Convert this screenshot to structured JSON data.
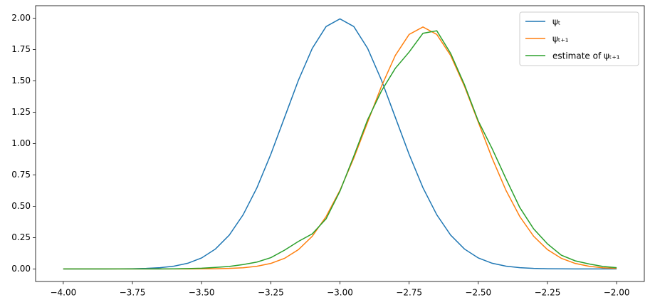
{
  "chart_data": {
    "type": "line",
    "x": [
      -4,
      -3.95,
      -3.9,
      -3.85,
      -3.8,
      -3.75,
      -3.7,
      -3.65,
      -3.6,
      -3.55,
      -3.5,
      -3.45,
      -3.4,
      -3.35,
      -3.3,
      -3.25,
      -3.2,
      -3.15,
      -3.1,
      -3.05,
      -3,
      -2.95,
      -2.9,
      -2.85,
      -2.8,
      -2.75,
      -2.7,
      -2.65,
      -2.6,
      -2.55,
      -2.5,
      -2.45,
      -2.4,
      -2.35,
      -2.3,
      -2.25,
      -2.2,
      -2.15,
      -2.1,
      -2.05,
      -2
    ],
    "series": [
      {
        "name": "ψₜ",
        "color": "#1f77b4",
        "values": [
          0,
          0,
          0.0001,
          0.0002,
          0.0007,
          0.0018,
          0.0044,
          0.0101,
          0.0222,
          0.0455,
          0.0876,
          0.1589,
          0.27,
          0.432,
          0.648,
          0.914,
          1.21,
          1.506,
          1.76,
          1.934,
          1.995,
          1.934,
          1.76,
          1.506,
          1.21,
          0.914,
          0.648,
          0.432,
          0.27,
          0.1589,
          0.0876,
          0.0455,
          0.0222,
          0.0101,
          0.0044,
          0.0018,
          0.0007,
          0.0002,
          0.0001,
          0,
          0
        ]
      },
      {
        "name": "ψₜ₊₁",
        "color": "#ff7f0e",
        "values": [
          0,
          0,
          0,
          0,
          0,
          0,
          0,
          0,
          0,
          0,
          0.0006,
          0.0017,
          0.0042,
          0.0098,
          0.0214,
          0.044,
          0.085,
          0.154,
          0.261,
          0.418,
          0.627,
          0.884,
          1.171,
          1.457,
          1.703,
          1.871,
          1.93,
          1.871,
          1.703,
          1.457,
          1.171,
          0.884,
          0.627,
          0.418,
          0.261,
          0.154,
          0.085,
          0.044,
          0.0214,
          0.0098,
          0.0042
        ]
      },
      {
        "name": "estimate of ψₜ₊₁",
        "color": "#2ca02c",
        "values": [
          0,
          0,
          0,
          0,
          0,
          0,
          0,
          0,
          0.001,
          0.003,
          0.006,
          0.012,
          0.02,
          0.035,
          0.055,
          0.09,
          0.15,
          0.22,
          0.28,
          0.4,
          0.62,
          0.9,
          1.19,
          1.42,
          1.6,
          1.73,
          1.88,
          1.9,
          1.72,
          1.47,
          1.18,
          0.96,
          0.72,
          0.49,
          0.32,
          0.2,
          0.11,
          0.065,
          0.04,
          0.02,
          0.01
        ]
      }
    ],
    "xlim": [
      -4.1,
      -1.9
    ],
    "ylim": [
      -0.1,
      2.1
    ],
    "xticks": [
      {
        "value": -4,
        "label": "−4.00"
      },
      {
        "value": -3.75,
        "label": "−3.75"
      },
      {
        "value": -3.5,
        "label": "−3.50"
      },
      {
        "value": -3.25,
        "label": "−3.25"
      },
      {
        "value": -3,
        "label": "−3.00"
      },
      {
        "value": -2.75,
        "label": "−2.75"
      },
      {
        "value": -2.5,
        "label": "−2.50"
      },
      {
        "value": -2.25,
        "label": "−2.25"
      },
      {
        "value": -2,
        "label": "−2.00"
      }
    ],
    "yticks": [
      {
        "value": 0,
        "label": "0.00"
      },
      {
        "value": 0.25,
        "label": "0.25"
      },
      {
        "value": 0.5,
        "label": "0.50"
      },
      {
        "value": 0.75,
        "label": "0.75"
      },
      {
        "value": 1,
        "label": "1.00"
      },
      {
        "value": 1.25,
        "label": "1.25"
      },
      {
        "value": 1.5,
        "label": "1.50"
      },
      {
        "value": 1.75,
        "label": "1.75"
      },
      {
        "value": 2,
        "label": "2.00"
      }
    ],
    "grid": false,
    "legend": "upper right"
  }
}
